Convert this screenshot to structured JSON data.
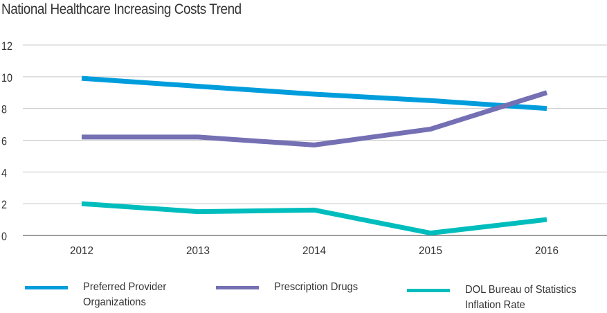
{
  "chart_data": {
    "type": "line",
    "title": "National Healthcare Increasing Costs Trend",
    "xlabel": "",
    "ylabel": "",
    "categories": [
      "2012",
      "2013",
      "2014",
      "2015",
      "2016"
    ],
    "ylim": [
      0,
      12
    ],
    "yticks": [
      "0",
      "2",
      "4",
      "6",
      "8",
      "10",
      "12"
    ],
    "grid": true,
    "legend_position": "bottom",
    "series": [
      {
        "name": "Preferred Provider Organizations",
        "color": "#009ddc",
        "values": [
          9.9,
          9.4,
          8.9,
          8.5,
          8.0
        ]
      },
      {
        "name": "Prescription Drugs",
        "color": "#7470b3",
        "values": [
          6.2,
          6.2,
          5.7,
          6.7,
          9.0
        ]
      },
      {
        "name": "DOL Bureau of Statistics Inflation Rate",
        "color": "#00bdbd",
        "values": [
          2.0,
          1.5,
          1.6,
          0.15,
          1.0
        ]
      }
    ]
  },
  "legend": [
    {
      "label": "Preferred Provider\nOrganizations"
    },
    {
      "label": "Prescription Drugs"
    },
    {
      "label": "DOL Bureau of Statistics\nInflation Rate"
    }
  ]
}
